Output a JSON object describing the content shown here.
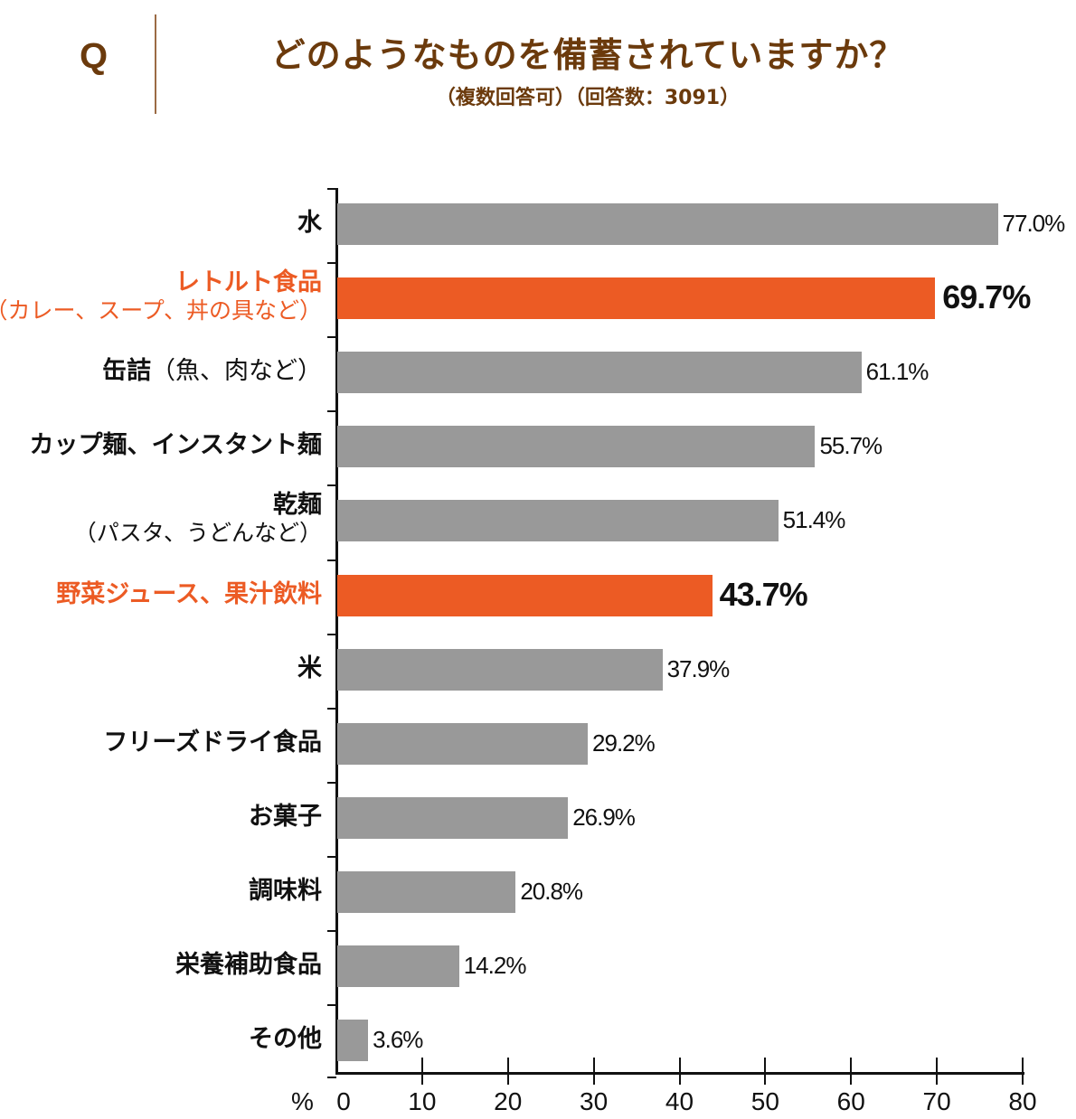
{
  "header": {
    "q_label": "Q",
    "title": "どのようなものを備蓄されていますか？",
    "subtitle": "（複数回答可）（回答数：3091）"
  },
  "colors": {
    "bar_default": "#999999",
    "bar_highlight": "#ec5b24",
    "title": "#6b3a0c",
    "label_highlight": "#ec5b24"
  },
  "axis": {
    "unit_label": "%",
    "ticks": [
      "0",
      "10",
      "20",
      "30",
      "40",
      "50",
      "60",
      "70",
      "80"
    ]
  },
  "chart_data": {
    "type": "bar",
    "orientation": "horizontal",
    "title": "どのようなものを備蓄されていますか？",
    "subtitle": "（複数回答可）（回答数：3091）",
    "xlabel": "%",
    "ylabel": "",
    "xlim": [
      0,
      80
    ],
    "grid": false,
    "categories": [
      "水",
      "レトルト食品（カレー、スープ、丼の具など）",
      "缶詰（魚、肉など）",
      "カップ麺、インスタント麺",
      "乾麺（パスタ、うどんなど）",
      "野菜ジュース、果汁飲料",
      "米",
      "フリーズドライ食品",
      "お菓子",
      "調味料",
      "栄養補助食品",
      "その他"
    ],
    "values": [
      77.0,
      69.7,
      61.1,
      55.7,
      51.4,
      43.7,
      37.9,
      29.2,
      26.9,
      20.8,
      14.2,
      3.6
    ],
    "highlighted": [
      "レトルト食品（カレー、スープ、丼の具など）",
      "野菜ジュース、果汁飲料"
    ]
  },
  "rows": [
    {
      "label": "水",
      "sub": "",
      "value": 77.0,
      "value_label": "77.0%",
      "highlight": false
    },
    {
      "label": "レトルト食品",
      "sub": "（カレー、スープ、丼の具など）",
      "value": 69.7,
      "value_label": "69.7%",
      "highlight": true
    },
    {
      "label": "缶詰",
      "inline_sub": "（魚、肉など）",
      "value": 61.1,
      "value_label": "61.1%",
      "highlight": false
    },
    {
      "label": "カップ麺、インスタント麺",
      "sub": "",
      "value": 55.7,
      "value_label": "55.7%",
      "highlight": false
    },
    {
      "label": "乾麺",
      "sub": "（パスタ、うどんなど）",
      "value": 51.4,
      "value_label": "51.4%",
      "highlight": false
    },
    {
      "label": "野菜ジュース、果汁飲料",
      "sub": "",
      "value": 43.7,
      "value_label": "43.7%",
      "highlight": true
    },
    {
      "label": "米",
      "sub": "",
      "value": 37.9,
      "value_label": "37.9%",
      "highlight": false
    },
    {
      "label": "フリーズドライ食品",
      "sub": "",
      "value": 29.2,
      "value_label": "29.2%",
      "highlight": false
    },
    {
      "label": "お菓子",
      "sub": "",
      "value": 26.9,
      "value_label": "26.9%",
      "highlight": false
    },
    {
      "label": "調味料",
      "sub": "",
      "value": 20.8,
      "value_label": "20.8%",
      "highlight": false
    },
    {
      "label": "栄養補助食品",
      "sub": "",
      "value": 14.2,
      "value_label": "14.2%",
      "highlight": false
    },
    {
      "label": "その他",
      "sub": "",
      "value": 3.6,
      "value_label": "3.6%",
      "highlight": false
    }
  ]
}
